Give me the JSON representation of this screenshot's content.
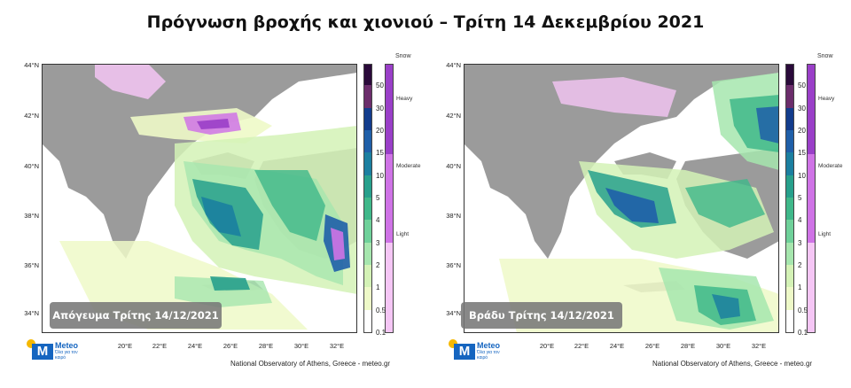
{
  "title": "Πρόγνωση βροχής και χιονιού – Τρίτη 14 Δεκεμβρίου 2021",
  "lat_labels": [
    "44°N",
    "42°N",
    "40°N",
    "38°N",
    "36°N",
    "34°N"
  ],
  "lon_labels": [
    "20°E",
    "22°E",
    "24°E",
    "26°E",
    "28°E",
    "30°E",
    "32°E"
  ],
  "colorbar_labels": [
    "50",
    "30",
    "20",
    "15",
    "10",
    "5",
    "4",
    "3",
    "2",
    "1",
    "0.5",
    "0.1"
  ],
  "colorbar_colors": [
    "#2a0a3a",
    "#6b2d6b",
    "#123c8c",
    "#1f5fa8",
    "#1b7fa0",
    "#27a08c",
    "#3fb88a",
    "#6fd19a",
    "#a6e6ae",
    "#d4f2b6",
    "#eef9c8",
    "#ffffff"
  ],
  "snow": {
    "title": "Snow",
    "categories": [
      "Heavy",
      "Moderate",
      "Light"
    ],
    "colors": [
      "#9a3fc8",
      "#cf73e6",
      "#f5c6f5"
    ]
  },
  "panels": [
    {
      "caption": "Απόγευμα Τρίτης 14/12/2021"
    },
    {
      "caption": "Βράδυ Τρίτης 14/12/2021"
    }
  ],
  "logo": {
    "name": "Meteo",
    "tagline": "Όλα για τον καιρό"
  },
  "credit": "National Observatory of Athens, Greece - meteo.gr",
  "colors": {
    "land": "#9b9b9b",
    "sea": "#ffffff"
  }
}
